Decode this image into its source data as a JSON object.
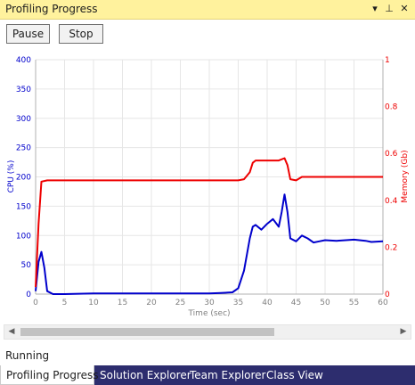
{
  "window": {
    "title": "Profiling Progress",
    "dropdown_icon": "▾",
    "pin_icon": "⊥",
    "close_icon": "✕"
  },
  "toolbar": {
    "pause_label": "Pause",
    "stop_label": "Stop"
  },
  "status": "Running",
  "scrollbar": {
    "left_arrow": "◀",
    "right_arrow": "▶"
  },
  "tabs": [
    {
      "label": "Profiling Progress",
      "active": true
    },
    {
      "label": "Solution Explorer",
      "active": false
    },
    {
      "label": "Team Explorer",
      "active": false
    },
    {
      "label": "Class View",
      "active": false
    }
  ],
  "colors": {
    "cpu": "#0000cc",
    "memory": "#ee0000",
    "title_bg": "#fff29d",
    "tab_bg": "#2d2d6e"
  },
  "chart_data": {
    "type": "line",
    "xlabel": "Time (sec)",
    "ylabel_left": "CPU (%)",
    "ylabel_right": "Memory (Gb)",
    "xlim": [
      0,
      60
    ],
    "ylim_left": [
      0,
      400
    ],
    "ylim_right": [
      0,
      1
    ],
    "x_ticks": [
      0,
      5,
      10,
      15,
      20,
      25,
      30,
      35,
      40,
      45,
      50,
      55,
      60
    ],
    "y_ticks_left": [
      0,
      50,
      100,
      150,
      200,
      250,
      300,
      350,
      400
    ],
    "y_ticks_right": [
      "0",
      "0.2",
      "0.4",
      "0.6",
      "0.8",
      "1"
    ],
    "grid": true,
    "series": [
      {
        "name": "CPU (%)",
        "axis": "left",
        "color": "#0000cc",
        "x": [
          0,
          0.5,
          1,
          1.5,
          2,
          3,
          5,
          10,
          15,
          20,
          25,
          30,
          32,
          34,
          35,
          36,
          37,
          37.5,
          38,
          39,
          40,
          41,
          42,
          42.5,
          43,
          43.5,
          44,
          45,
          46,
          47,
          48,
          49,
          50,
          52,
          55,
          57,
          58,
          60
        ],
        "y": [
          5,
          55,
          72,
          45,
          5,
          0,
          0,
          1,
          1,
          1,
          1,
          1,
          2,
          3,
          10,
          40,
          95,
          115,
          118,
          110,
          120,
          128,
          115,
          140,
          170,
          140,
          95,
          90,
          100,
          95,
          88,
          90,
          92,
          91,
          93,
          91,
          89,
          90
        ]
      },
      {
        "name": "Memory (Gb)",
        "axis": "right",
        "color": "#ee0000",
        "x": [
          0,
          0.5,
          1,
          2,
          5,
          10,
          20,
          30,
          35,
          36,
          37,
          37.5,
          38,
          40,
          42,
          43,
          43.5,
          44,
          45,
          46,
          50,
          55,
          60
        ],
        "y": [
          0.03,
          0.3,
          0.48,
          0.485,
          0.485,
          0.485,
          0.485,
          0.485,
          0.485,
          0.49,
          0.52,
          0.56,
          0.57,
          0.57,
          0.57,
          0.58,
          0.55,
          0.49,
          0.485,
          0.5,
          0.5,
          0.5,
          0.5
        ]
      }
    ]
  }
}
